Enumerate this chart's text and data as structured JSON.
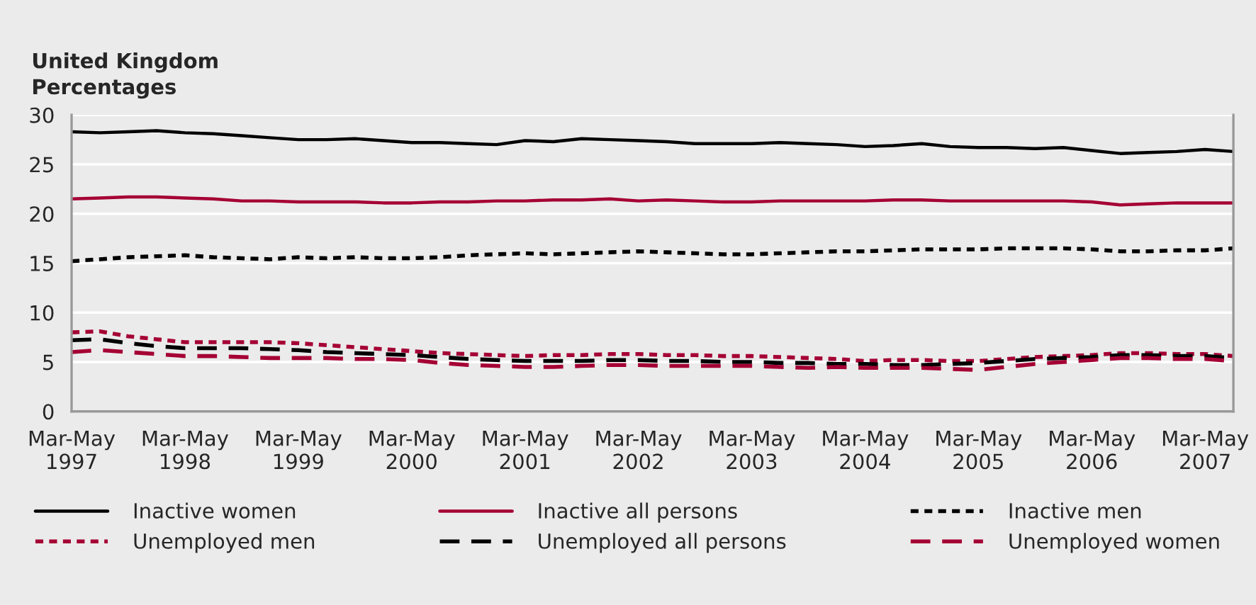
{
  "chart_data": {
    "type": "line",
    "title": "United Kingdom",
    "ylabel": "Percentages",
    "categories": [
      "Mar-May\n1997",
      null,
      null,
      null,
      "Mar-May\n1998",
      null,
      null,
      null,
      "Mar-May\n1999",
      null,
      null,
      null,
      "Mar-May\n2000",
      null,
      null,
      null,
      "Mar-May\n2001",
      null,
      null,
      null,
      "Mar-May\n2002",
      null,
      null,
      null,
      "Mar-May\n2003",
      null,
      null,
      null,
      "Mar-May\n2004",
      null,
      null,
      null,
      "Mar-May\n2005",
      null,
      null,
      null,
      "Mar-May\n2006",
      null,
      null,
      null,
      "Mar-May\n2007",
      null
    ],
    "series": [
      {
        "name": "Inactive women",
        "color": "#000000",
        "line_style": "solid",
        "values": [
          28.3,
          28.2,
          28.3,
          28.4,
          28.2,
          28.1,
          27.9,
          27.7,
          27.5,
          27.5,
          27.6,
          27.4,
          27.2,
          27.2,
          27.1,
          27.0,
          27.4,
          27.3,
          27.6,
          27.5,
          27.4,
          27.3,
          27.1,
          27.1,
          27.1,
          27.2,
          27.1,
          27.0,
          26.8,
          26.9,
          27.1,
          26.8,
          26.7,
          26.7,
          26.6,
          26.7,
          26.4,
          26.1,
          26.2,
          26.3,
          26.5,
          26.3
        ]
      },
      {
        "name": "Inactive all persons",
        "color": "#a50034",
        "line_style": "solid",
        "values": [
          21.5,
          21.6,
          21.7,
          21.7,
          21.6,
          21.5,
          21.3,
          21.3,
          21.2,
          21.2,
          21.2,
          21.1,
          21.1,
          21.2,
          21.2,
          21.3,
          21.3,
          21.4,
          21.4,
          21.5,
          21.3,
          21.4,
          21.3,
          21.2,
          21.2,
          21.3,
          21.3,
          21.3,
          21.3,
          21.4,
          21.4,
          21.3,
          21.3,
          21.3,
          21.3,
          21.3,
          21.2,
          20.9,
          21.0,
          21.1,
          21.1,
          21.1
        ]
      },
      {
        "name": "Inactive men",
        "color": "#000000",
        "line_style": "dotted",
        "values": [
          15.2,
          15.4,
          15.6,
          15.7,
          15.8,
          15.6,
          15.5,
          15.4,
          15.6,
          15.5,
          15.6,
          15.5,
          15.5,
          15.6,
          15.8,
          15.9,
          16.0,
          15.9,
          16.0,
          16.1,
          16.2,
          16.1,
          16.0,
          15.9,
          15.9,
          16.0,
          16.1,
          16.2,
          16.2,
          16.3,
          16.4,
          16.4,
          16.4,
          16.5,
          16.5,
          16.5,
          16.4,
          16.2,
          16.2,
          16.3,
          16.3,
          16.5
        ]
      },
      {
        "name": "Unemployed men",
        "color": "#a50034",
        "line_style": "dotted",
        "values": [
          8.0,
          8.1,
          7.6,
          7.3,
          7.0,
          7.0,
          7.0,
          7.0,
          6.9,
          6.7,
          6.5,
          6.3,
          6.1,
          5.9,
          5.8,
          5.7,
          5.6,
          5.7,
          5.7,
          5.8,
          5.8,
          5.7,
          5.7,
          5.6,
          5.6,
          5.5,
          5.4,
          5.3,
          5.1,
          5.2,
          5.2,
          5.1,
          5.1,
          5.3,
          5.5,
          5.6,
          5.7,
          5.9,
          5.9,
          5.8,
          5.8,
          5.6
        ]
      },
      {
        "name": "Unemployed all persons",
        "color": "#000000",
        "line_style": "dashed",
        "values": [
          7.2,
          7.3,
          6.9,
          6.6,
          6.4,
          6.4,
          6.4,
          6.3,
          6.2,
          6.0,
          5.9,
          5.8,
          5.7,
          5.5,
          5.3,
          5.2,
          5.1,
          5.1,
          5.1,
          5.2,
          5.2,
          5.1,
          5.1,
          5.0,
          5.0,
          4.9,
          4.9,
          4.8,
          4.8,
          4.7,
          4.7,
          4.8,
          4.9,
          5.1,
          5.3,
          5.4,
          5.5,
          5.7,
          5.7,
          5.6,
          5.6,
          5.4
        ]
      },
      {
        "name": "Unemployed women",
        "color": "#a50034",
        "line_style": "dashed",
        "values": [
          6.0,
          6.2,
          6.0,
          5.8,
          5.6,
          5.6,
          5.5,
          5.4,
          5.4,
          5.4,
          5.3,
          5.3,
          5.2,
          4.9,
          4.7,
          4.6,
          4.5,
          4.5,
          4.6,
          4.7,
          4.7,
          4.6,
          4.6,
          4.6,
          4.6,
          4.5,
          4.4,
          4.5,
          4.4,
          4.4,
          4.4,
          4.3,
          4.2,
          4.5,
          4.8,
          5.0,
          5.2,
          5.4,
          5.4,
          5.3,
          5.3,
          5.1
        ]
      }
    ],
    "ylim": [
      0,
      30
    ],
    "yticks": [
      0,
      5,
      10,
      15,
      20,
      25,
      30
    ],
    "grid": "y",
    "legend": "bottom"
  }
}
